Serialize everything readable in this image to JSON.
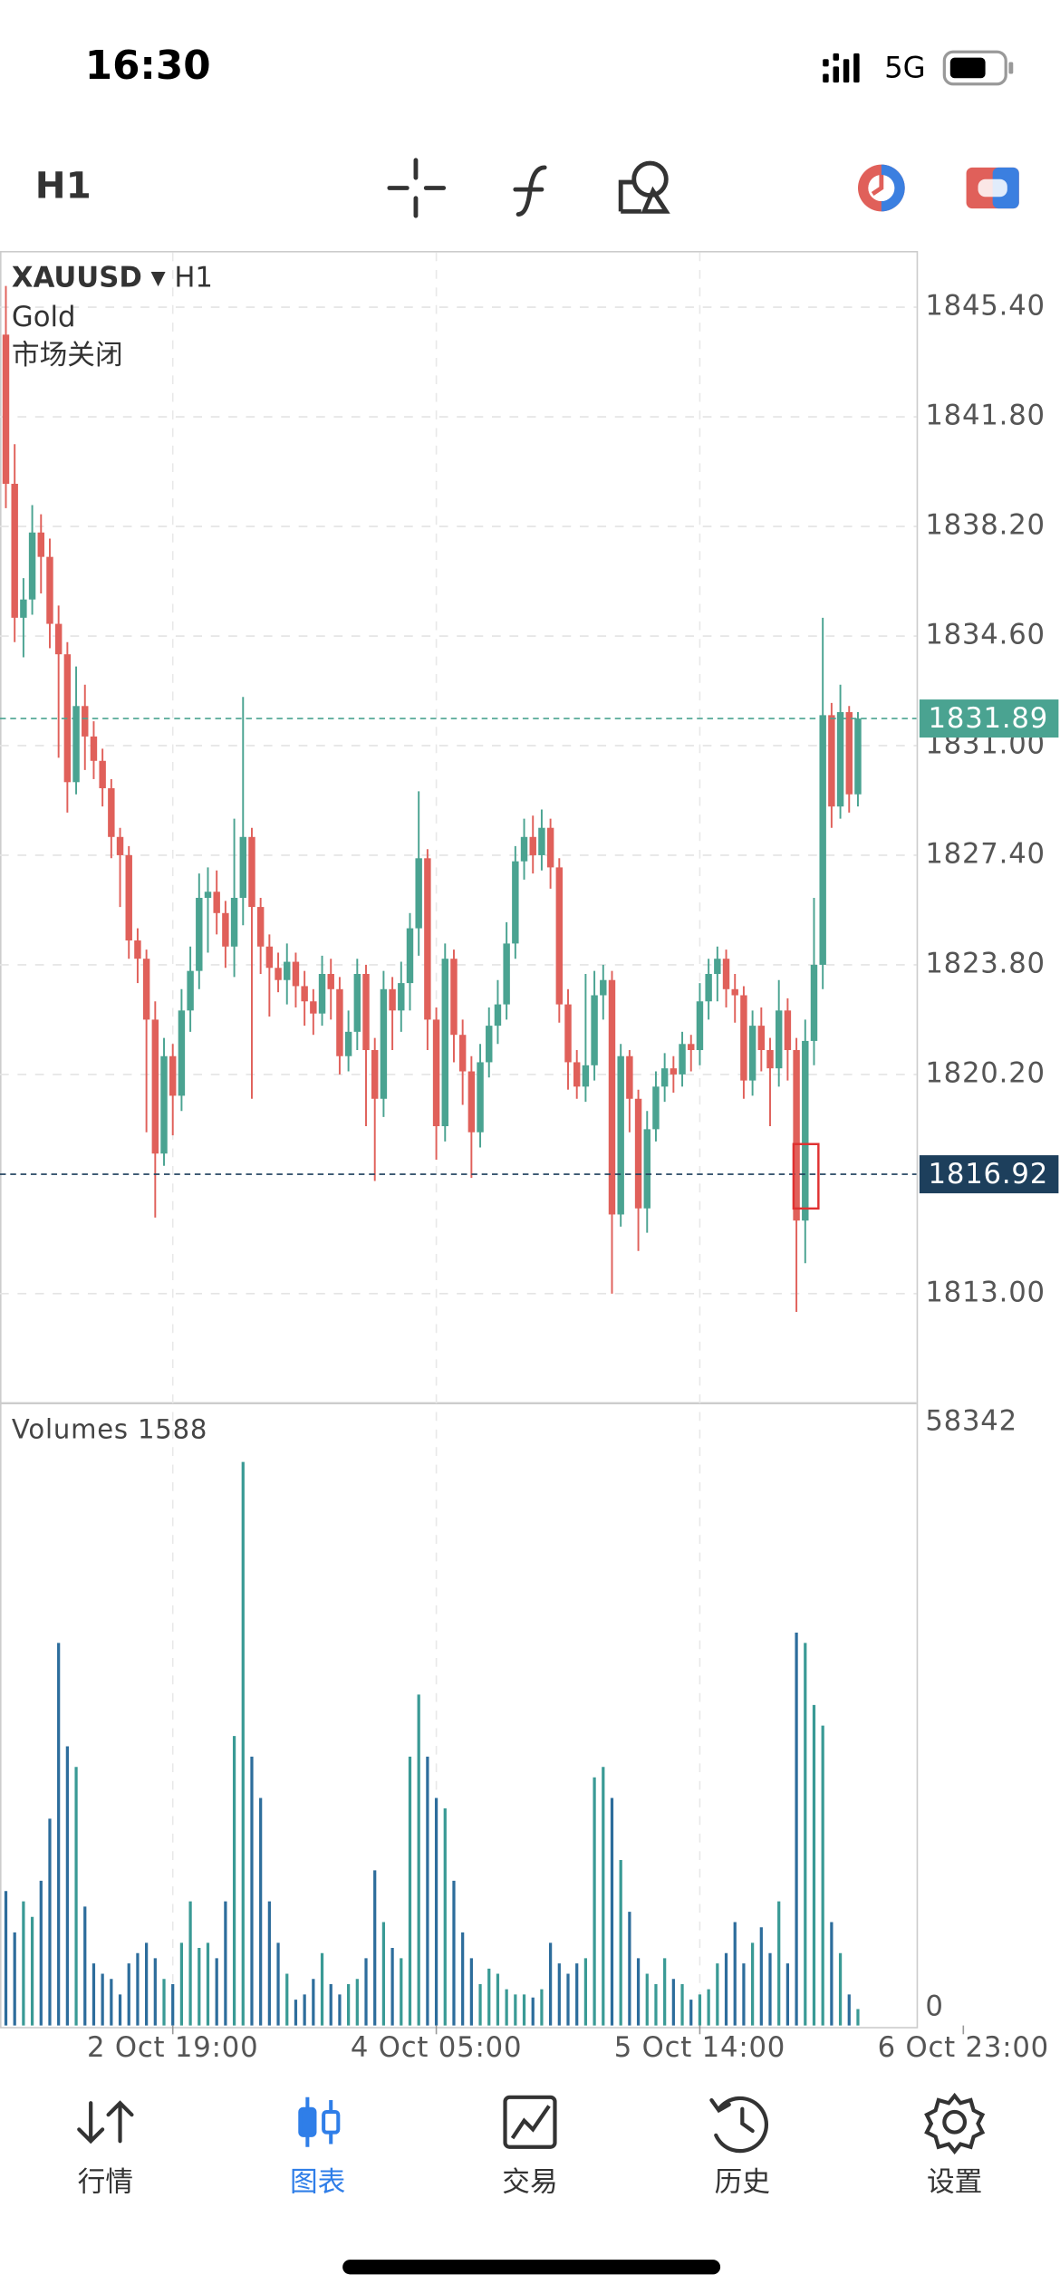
{
  "status_bar": {
    "time": "16:30",
    "network": "5G"
  },
  "toolbar": {
    "timeframe": "H1"
  },
  "chart_data": {
    "type": "candlestick",
    "symbol": "XAUUSD",
    "timeframe": "H1",
    "name": "Gold",
    "status": "市场关闭",
    "up_color": "#4aa391",
    "down_color": "#e0605a",
    "volume_up_color": "#3a9a95",
    "volume_down_color": "#2d6d9c",
    "open": [
      1844.5,
      1839.6,
      1835.2,
      1835.8,
      1838.0,
      1837.2,
      1835.0,
      1834.0,
      1829.8,
      1832.3,
      1831.3,
      1830.5,
      1829.6,
      1828.0,
      1827.4,
      1824.6,
      1824.0,
      1822.0,
      1817.6,
      1820.8,
      1819.5,
      1822.3,
      1823.6,
      1826.0,
      1826.2,
      1825.5,
      1824.4,
      1826.0,
      1828.0,
      1825.7,
      1824.4,
      1823.7,
      1823.3,
      1823.9,
      1823.1,
      1822.6,
      1822.2,
      1823.5,
      1823.0,
      1820.8,
      1821.6,
      1823.5,
      1821.0,
      1819.4,
      1823.0,
      1822.3,
      1823.2,
      1825.0,
      1827.3,
      1822.0,
      1818.5,
      1824.0,
      1821.5,
      1820.3,
      1818.3,
      1820.6,
      1821.8,
      1822.5,
      1824.5,
      1827.2,
      1828.0,
      1827.4,
      1828.3,
      1827.0,
      1822.5,
      1820.6,
      1819.8,
      1820.5,
      1822.8,
      1823.3,
      1815.6,
      1820.8,
      1819.4,
      1815.8,
      1818.4,
      1819.8,
      1820.4,
      1820.2,
      1821.2,
      1821.0,
      1822.6,
      1823.5,
      1824.0,
      1823.0,
      1822.8,
      1820.0,
      1821.8,
      1821.0,
      1820.4,
      1822.3,
      1821.0,
      1815.4,
      1821.3,
      1823.8,
      1832.0,
      1829.0,
      1832.1,
      1829.4
    ],
    "high": [
      1846.1,
      1840.9,
      1836.5,
      1838.9,
      1838.6,
      1837.8,
      1835.6,
      1834.4,
      1833.6,
      1833.0,
      1831.8,
      1830.9,
      1829.9,
      1828.3,
      1827.7,
      1825.0,
      1824.3,
      1822.6,
      1821.4,
      1821.2,
      1823.0,
      1824.4,
      1826.8,
      1827.0,
      1826.9,
      1825.9,
      1828.6,
      1832.6,
      1828.3,
      1826.0,
      1824.8,
      1824.2,
      1824.5,
      1824.2,
      1823.6,
      1823.0,
      1824.1,
      1824.0,
      1823.4,
      1822.3,
      1824.0,
      1823.8,
      1821.4,
      1823.6,
      1823.4,
      1823.9,
      1825.5,
      1829.5,
      1827.6,
      1822.4,
      1824.5,
      1824.3,
      1822.0,
      1820.8,
      1821.2,
      1822.4,
      1823.3,
      1825.2,
      1827.7,
      1828.6,
      1828.7,
      1828.9,
      1828.6,
      1827.3,
      1823.0,
      1821.0,
      1823.5,
      1823.6,
      1823.8,
      1823.6,
      1821.2,
      1821.0,
      1819.7,
      1819.0,
      1820.3,
      1820.9,
      1820.8,
      1821.6,
      1821.5,
      1823.2,
      1824.0,
      1824.4,
      1824.3,
      1823.5,
      1823.1,
      1822.3,
      1822.4,
      1821.4,
      1823.3,
      1822.7,
      1821.4,
      1822.0,
      1826.0,
      1835.2,
      1832.4,
      1833.0,
      1832.3,
      1832.1
    ],
    "low": [
      1838.8,
      1834.4,
      1833.9,
      1835.3,
      1836.0,
      1834.2,
      1830.6,
      1828.8,
      1829.4,
      1830.2,
      1829.9,
      1829.0,
      1827.3,
      1825.7,
      1824.0,
      1823.2,
      1818.3,
      1815.5,
      1817.2,
      1818.2,
      1819.0,
      1821.6,
      1823.0,
      1824.2,
      1824.8,
      1823.7,
      1823.4,
      1825.1,
      1819.4,
      1823.5,
      1822.1,
      1822.9,
      1822.5,
      1822.4,
      1821.8,
      1821.5,
      1821.8,
      1822.0,
      1820.2,
      1820.3,
      1821.0,
      1818.5,
      1816.7,
      1818.8,
      1821.0,
      1821.6,
      1822.3,
      1824.1,
      1821.0,
      1817.4,
      1818.0,
      1820.6,
      1819.2,
      1816.8,
      1817.8,
      1820.1,
      1821.2,
      1822.0,
      1824.0,
      1826.6,
      1826.8,
      1826.9,
      1826.3,
      1821.9,
      1819.7,
      1819.4,
      1819.3,
      1820.0,
      1822.0,
      1813.0,
      1815.2,
      1818.3,
      1814.4,
      1815.0,
      1818.0,
      1819.3,
      1819.6,
      1819.8,
      1820.3,
      1820.5,
      1822.0,
      1822.6,
      1822.4,
      1821.9,
      1819.4,
      1819.5,
      1820.3,
      1818.5,
      1819.8,
      1820.0,
      1812.4,
      1814.0,
      1820.5,
      1823.0,
      1828.3,
      1828.6,
      1828.8,
      1829.0
    ],
    "close": [
      1839.6,
      1835.2,
      1835.8,
      1838.0,
      1837.2,
      1835.0,
      1834.0,
      1829.8,
      1832.3,
      1831.3,
      1830.5,
      1829.6,
      1828.0,
      1827.4,
      1824.6,
      1824.0,
      1822.0,
      1817.6,
      1820.8,
      1819.5,
      1822.3,
      1823.6,
      1826.0,
      1826.2,
      1825.5,
      1824.4,
      1826.0,
      1828.0,
      1825.7,
      1824.4,
      1823.7,
      1823.3,
      1823.9,
      1823.1,
      1822.6,
      1822.2,
      1823.5,
      1823.0,
      1820.8,
      1821.6,
      1823.5,
      1821.0,
      1819.4,
      1823.0,
      1822.3,
      1823.2,
      1825.0,
      1827.3,
      1822.0,
      1818.5,
      1824.0,
      1821.5,
      1820.3,
      1818.3,
      1820.6,
      1821.8,
      1822.5,
      1824.5,
      1827.2,
      1828.0,
      1827.4,
      1828.3,
      1827.0,
      1822.5,
      1820.6,
      1819.8,
      1820.5,
      1822.8,
      1823.3,
      1815.6,
      1820.8,
      1819.4,
      1815.8,
      1818.4,
      1819.8,
      1820.4,
      1820.2,
      1821.2,
      1821.0,
      1822.6,
      1823.5,
      1824.0,
      1823.0,
      1822.8,
      1820.0,
      1821.8,
      1821.0,
      1820.4,
      1822.3,
      1821.0,
      1815.4,
      1821.3,
      1823.8,
      1832.0,
      1829.0,
      1832.1,
      1829.4,
      1831.89
    ],
    "volumes": [
      13000,
      9000,
      12000,
      10500,
      14000,
      20000,
      37000,
      27000,
      25000,
      11500,
      6000,
      5000,
      4500,
      3000,
      6000,
      7000,
      8000,
      6500,
      4500,
      4000,
      8000,
      12000,
      7500,
      8000,
      6500,
      12000,
      28000,
      54500,
      26000,
      22000,
      12000,
      8000,
      5000,
      2500,
      3000,
      4500,
      7000,
      4000,
      3000,
      4000,
      4500,
      6500,
      15000,
      10000,
      7500,
      6500,
      26000,
      32000,
      26000,
      22000,
      21000,
      14000,
      9000,
      6500,
      4000,
      5500,
      5000,
      3500,
      3000,
      3000,
      2700,
      3500,
      8000,
      6000,
      5000,
      6000,
      6500,
      24000,
      25000,
      22000,
      16000,
      11000,
      6500,
      5000,
      4000,
      6500,
      4500,
      4000,
      2500,
      3000,
      3500,
      6000,
      7000,
      10000,
      6000,
      8000,
      9500,
      7000,
      12000,
      6000,
      38000,
      37000,
      31000,
      29000,
      10000,
      7000,
      3000,
      1588
    ],
    "volume_title": "Volumes",
    "volume_current": 1588,
    "ylim": [
      1809.4,
      1847.2
    ],
    "yticks": [
      {
        "value": 1813.0,
        "label": "1813.00"
      },
      {
        "value": 1820.2,
        "label": "1820.20"
      },
      {
        "value": 1823.8,
        "label": "1823.80"
      },
      {
        "value": 1827.4,
        "label": "1827.40"
      },
      {
        "value": 1831.0,
        "label": "1831.00"
      },
      {
        "value": 1834.6,
        "label": "1834.60"
      },
      {
        "value": 1838.2,
        "label": "1838.20"
      },
      {
        "value": 1841.8,
        "label": "1841.80"
      },
      {
        "value": 1845.4,
        "label": "1845.40"
      }
    ],
    "vlim": [
      0,
      58342
    ],
    "vticks": [
      0,
      58342
    ],
    "xlim": [
      -0.67,
      103.67
    ],
    "xticks": [
      {
        "value": 19,
        "label": "2 Oct 19:00"
      },
      {
        "value": 49,
        "label": "4 Oct 05:00"
      },
      {
        "value": 79,
        "label": "5 Oct 14:00"
      },
      {
        "value": 109,
        "label": "6 Oct 23:00"
      }
    ],
    "grid": true,
    "price_lines": [
      {
        "value": 1831.89,
        "color": "#4aa391"
      },
      {
        "value": 1816.92,
        "color": "#1d3f5c"
      }
    ]
  },
  "nav": {
    "items": [
      "行情",
      "图表",
      "交易",
      "历史",
      "设置"
    ],
    "active": 1
  }
}
